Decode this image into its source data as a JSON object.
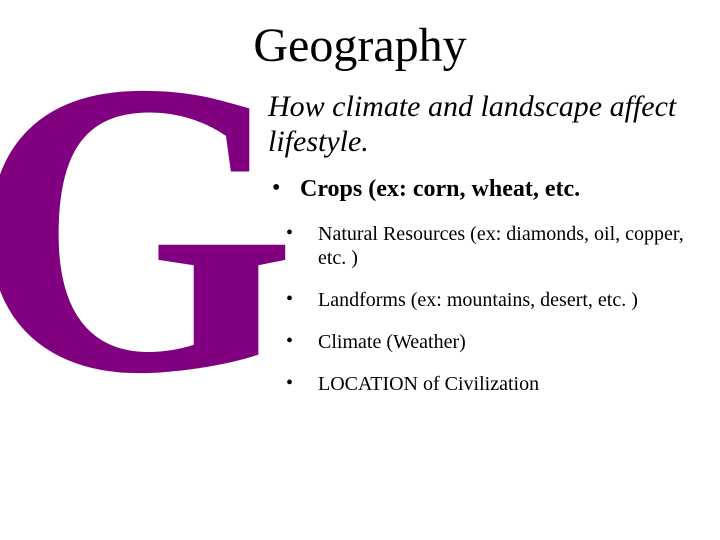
{
  "title": "Geography",
  "big_letter": "G",
  "big_letter_color": "#800080",
  "subtitle": "How climate and landscape affect lifestyle.",
  "bullets": {
    "main": "Crops (ex: corn, wheat, etc.",
    "sub1": "Natural Resources (ex: diamonds, oil, copper, etc. )",
    "sub2": "Landforms (ex: mountains, desert, etc. )",
    "sub3": "Climate (Weather)",
    "sub4": "LOCATION of Civilization"
  },
  "colors": {
    "background": "#ffffff",
    "text": "#000000",
    "accent": "#800080"
  },
  "typography": {
    "title_fontsize": 48,
    "subtitle_fontsize": 30,
    "bullet_main_fontsize": 24,
    "bullet_sub_fontsize": 20,
    "big_letter_fontsize": 420,
    "font_family": "Times New Roman"
  }
}
